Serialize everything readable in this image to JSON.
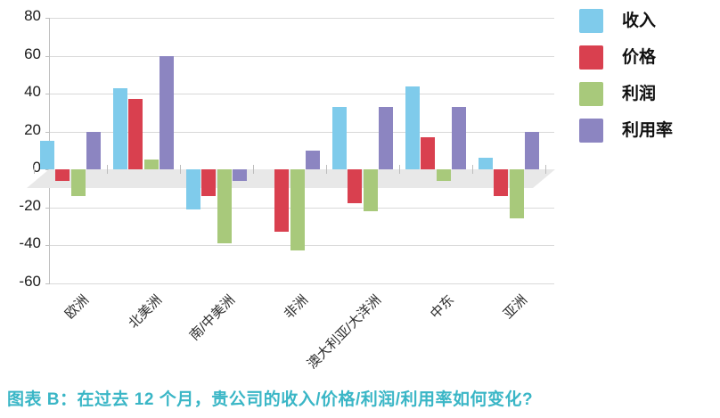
{
  "chart_data": {
    "type": "bar",
    "title": "",
    "categories": [
      "欧洲",
      "北美洲",
      "南/中美洲",
      "非洲",
      "澳大利亚/大洋洲",
      "中东",
      "亚洲"
    ],
    "series": [
      {
        "name": "收入",
        "color": "#7fcbeb",
        "values": [
          15,
          43,
          -21,
          0,
          33,
          44,
          6
        ]
      },
      {
        "name": "价格",
        "color": "#d9404f",
        "values": [
          -6,
          37,
          -14,
          -33,
          -18,
          17,
          -14
        ]
      },
      {
        "name": "利润",
        "color": "#a8c97b",
        "values": [
          -14,
          5,
          -39,
          -43,
          -22,
          -6,
          -26
        ]
      },
      {
        "name": "利用率",
        "color": "#8c85c1",
        "values": [
          20,
          60,
          -6,
          10,
          33,
          33,
          20
        ]
      }
    ],
    "xlabel": "",
    "ylabel": "",
    "ylim": [
      -60,
      80
    ],
    "yticks": [
      80,
      60,
      40,
      20,
      0,
      -20,
      -40,
      -60
    ],
    "grid": true,
    "legend_position": "right",
    "style": "pseudo-3d-floor"
  },
  "colors": {
    "gridline": "#d9d9d9",
    "axis": "#bfbfbf",
    "floor": "#e8e8e8",
    "caption": "#3ab6c6"
  },
  "caption": "图表 B：在过去 12 个月，贵公司的收入/价格/利润/利用率如何变化?"
}
